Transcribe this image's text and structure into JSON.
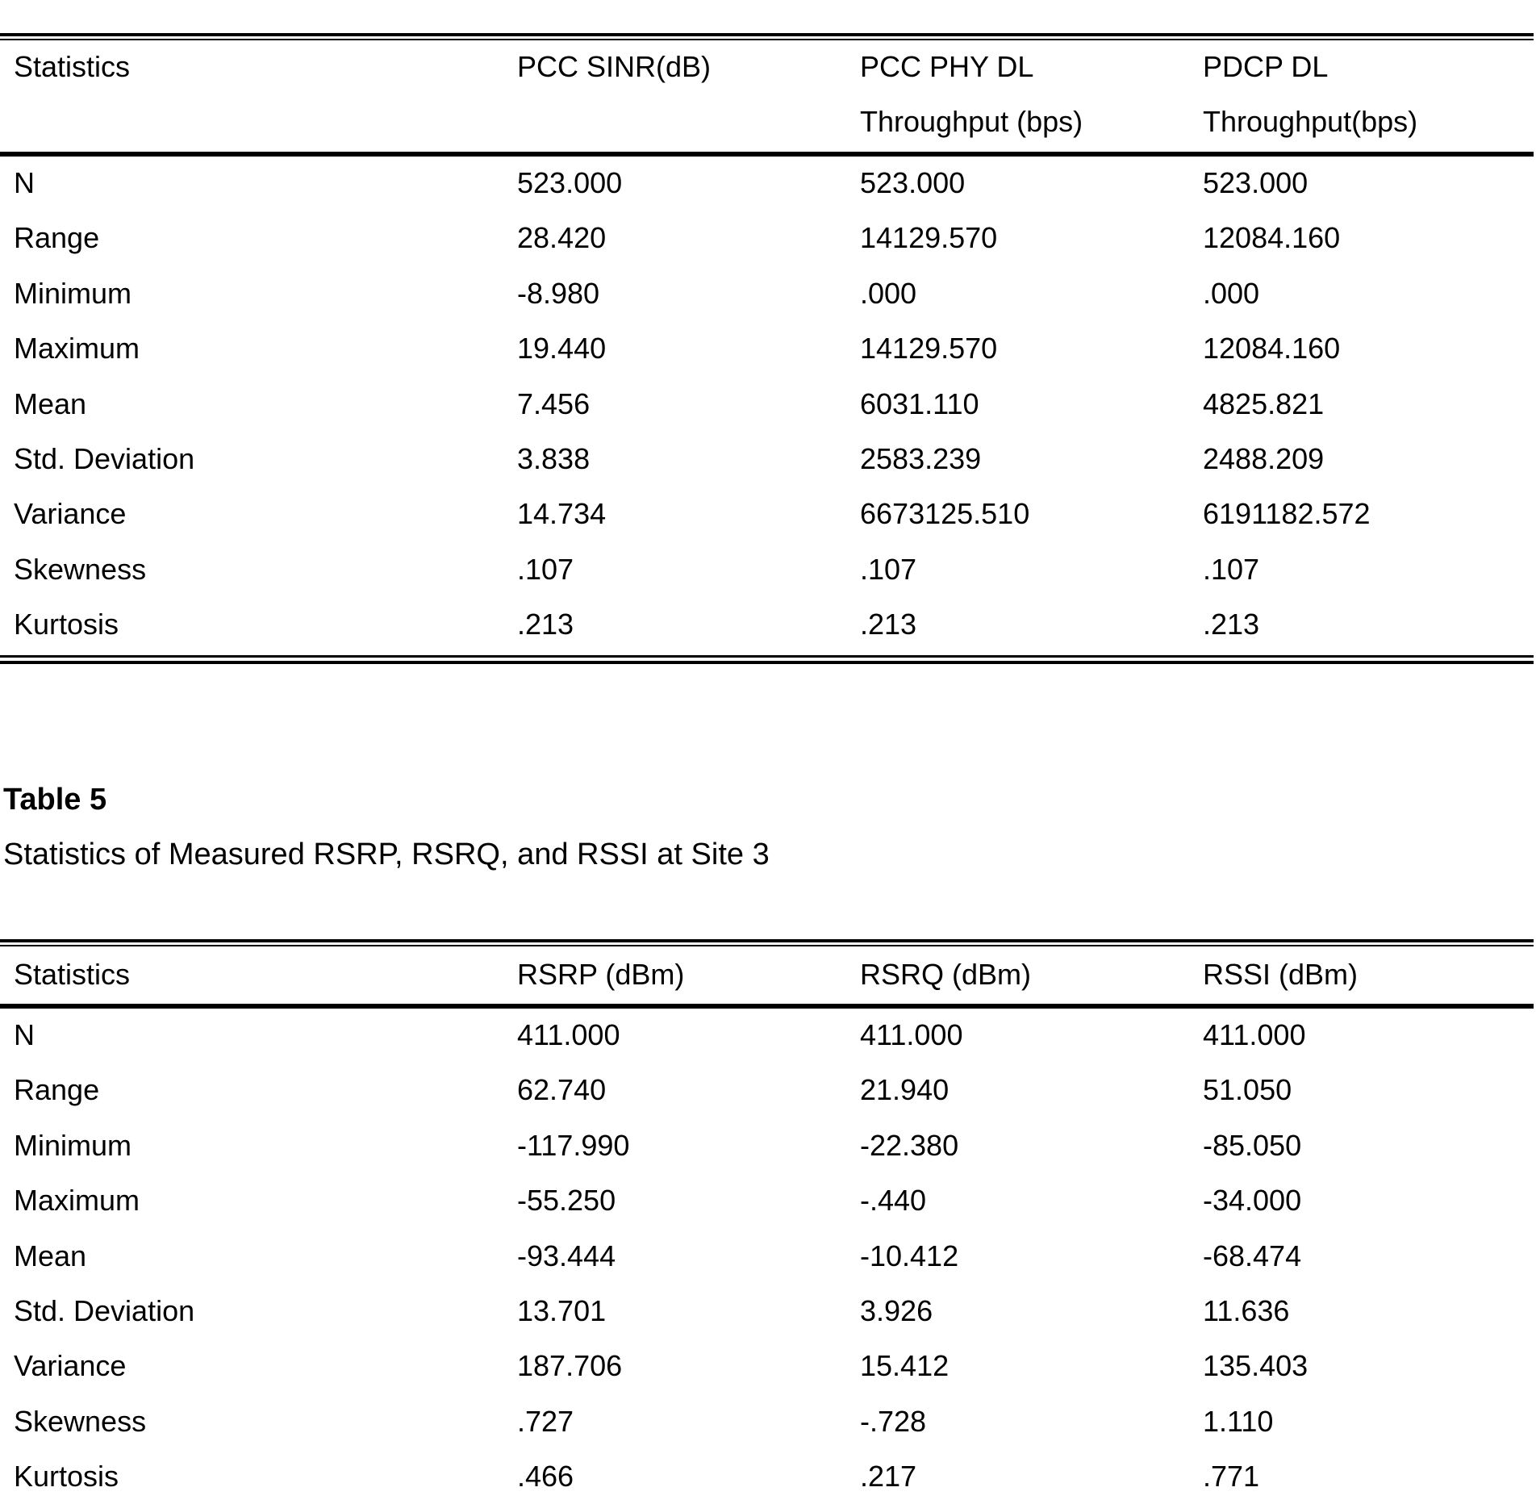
{
  "table1": {
    "header": [
      [
        "Statistics"
      ],
      [
        "PCC SINR(dB)"
      ],
      [
        "PCC PHY DL",
        "Throughput (bps)"
      ],
      [
        "PDCP DL",
        "Throughput(bps)"
      ]
    ],
    "rows": [
      [
        "N",
        "523.000",
        "523.000",
        "523.000"
      ],
      [
        "Range",
        "28.420",
        "14129.570",
        "12084.160"
      ],
      [
        "Minimum",
        "-8.980",
        ".000",
        ".000"
      ],
      [
        "Maximum",
        "19.440",
        "14129.570",
        "12084.160"
      ],
      [
        "Mean",
        "7.456",
        "6031.110",
        "4825.821"
      ],
      [
        "Std. Deviation",
        "3.838",
        "2583.239",
        "2488.209"
      ],
      [
        "Variance",
        "14.734",
        "6673125.510",
        "6191182.572"
      ],
      [
        "Skewness",
        ".107",
        ".107",
        ".107"
      ],
      [
        "Kurtosis",
        ".213",
        ".213",
        ".213"
      ]
    ]
  },
  "table5": {
    "label": "Table 5",
    "caption": "Statistics of Measured RSRP, RSRQ, and RSSI at Site 3",
    "header": [
      [
        "Statistics"
      ],
      [
        "RSRP (dBm)"
      ],
      [
        "RSRQ (dBm)"
      ],
      [
        "RSSI (dBm)"
      ]
    ],
    "rows": [
      [
        "N",
        "411.000",
        "411.000",
        "411.000"
      ],
      [
        "Range",
        "62.740",
        "21.940",
        "51.050"
      ],
      [
        "Minimum",
        "-117.990",
        "-22.380",
        "-85.050"
      ],
      [
        "Maximum",
        "-55.250",
        "-.440",
        "-34.000"
      ],
      [
        "Mean",
        "-93.444",
        "-10.412",
        "-68.474"
      ],
      [
        "Std. Deviation",
        "13.701",
        "3.926",
        "11.636"
      ],
      [
        "Variance",
        "187.706",
        "15.412",
        "135.403"
      ],
      [
        "Skewness",
        ".727",
        "-.728",
        "1.110"
      ],
      [
        "Kurtosis",
        ".466",
        ".217",
        ".771"
      ]
    ]
  }
}
